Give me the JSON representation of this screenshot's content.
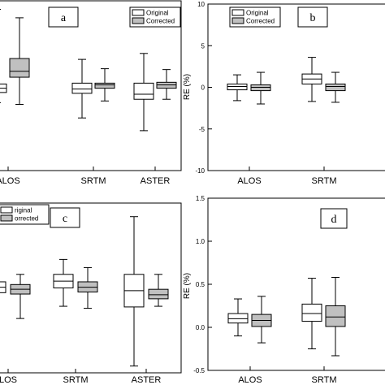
{
  "colors": {
    "original": "#ffffff",
    "corrected": "#c0c0c0",
    "stroke": "#000000"
  },
  "chart_data": [
    {
      "id": "a",
      "type": "box",
      "panel_label": "a",
      "categories": [
        "ALOS",
        "SRTM",
        "ASTER"
      ],
      "category_labels": [
        "ALOS",
        "SRTM",
        "ASTER"
      ],
      "legend": [
        "Original",
        "Corrected"
      ],
      "ylim": [
        -10,
        10
      ],
      "ylabel": "",
      "yticks": [],
      "yticklabels": [],
      "series": [
        {
          "name": "Original",
          "stats": [
            {
              "min": -2,
              "q1": -0.8,
              "median": -0.3,
              "q3": 0.2,
              "max": 9
            },
            {
              "min": -3.8,
              "q1": -0.9,
              "median": -0.4,
              "q3": 0.3,
              "max": 3.1
            },
            {
              "min": -5.3,
              "q1": -1.6,
              "median": -1.0,
              "q3": 0.3,
              "max": 3.8
            }
          ]
        },
        {
          "name": "Corrected",
          "stats": [
            {
              "min": -2.2,
              "q1": 1.0,
              "median": 1.7,
              "q3": 3.2,
              "max": 8
            },
            {
              "min": -1.8,
              "q1": -0.3,
              "median": 0.1,
              "q3": 0.3,
              "max": 2.0
            },
            {
              "min": -1.6,
              "q1": -0.3,
              "median": 0.1,
              "q3": 0.4,
              "max": 1.9
            }
          ]
        }
      ]
    },
    {
      "id": "b",
      "type": "box",
      "panel_label": "b",
      "categories": [
        "ALOS",
        "SRTM"
      ],
      "category_labels": [
        "ALOS",
        "SRTM"
      ],
      "legend": [
        "Original",
        "Corrected"
      ],
      "ylim": [
        -10,
        10
      ],
      "ylabel": "RE (%)",
      "yticks": [
        -10,
        -5,
        0,
        5,
        10
      ],
      "yticklabels": [
        "-10",
        "-5",
        "0",
        "5",
        "10"
      ],
      "series": [
        {
          "name": "Original",
          "stats": [
            {
              "min": -1.6,
              "q1": -0.3,
              "median": 0.1,
              "q3": 0.4,
              "max": 1.5
            },
            {
              "min": -1.7,
              "q1": 0.4,
              "median": 1.0,
              "q3": 1.6,
              "max": 3.6
            }
          ]
        },
        {
          "name": "Corrected",
          "stats": [
            {
              "min": -2.0,
              "q1": -0.4,
              "median": 0.0,
              "q3": 0.3,
              "max": 1.8
            },
            {
              "min": -1.8,
              "q1": -0.4,
              "median": 0.1,
              "q3": 0.4,
              "max": 1.8
            }
          ]
        }
      ]
    },
    {
      "id": "c",
      "type": "box",
      "panel_label": "c",
      "categories": [
        "ALOS",
        "SRTM",
        "ASTER"
      ],
      "category_labels": [
        "LOS",
        "SRTM",
        "ASTER"
      ],
      "legend": [
        "Original",
        "Corrected"
      ],
      "legend_labels": [
        "riginal",
        "orrected"
      ],
      "ylim": [
        -1.0,
        1.5
      ],
      "ylabel": "",
      "yticks": [],
      "yticklabels": [],
      "series": [
        {
          "name": "Original",
          "stats": [
            {
              "min": -0.2,
              "q1": 0.18,
              "median": 0.26,
              "q3": 0.34,
              "max": 0.55
            },
            {
              "min": -0.02,
              "q1": 0.25,
              "median": 0.35,
              "q3": 0.45,
              "max": 0.67
            },
            {
              "min": -0.9,
              "q1": -0.03,
              "median": 0.21,
              "q3": 0.45,
              "max": 1.3
            }
          ]
        },
        {
          "name": "Corrected",
          "stats": [
            {
              "min": -0.2,
              "q1": 0.16,
              "median": 0.23,
              "q3": 0.3,
              "max": 0.45
            },
            {
              "min": -0.05,
              "q1": 0.19,
              "median": 0.26,
              "q3": 0.34,
              "max": 0.55
            },
            {
              "min": -0.02,
              "q1": 0.09,
              "median": 0.15,
              "q3": 0.23,
              "max": 0.45
            }
          ]
        }
      ]
    },
    {
      "id": "d",
      "type": "box",
      "panel_label": "d",
      "categories": [
        "ALOS",
        "SRTM"
      ],
      "category_labels": [
        "ALOS",
        "SRTM"
      ],
      "legend": [],
      "ylim": [
        -0.5,
        1.5
      ],
      "ylabel": "RE (%)",
      "yticks": [
        -0.5,
        0.0,
        0.5,
        1.0,
        1.5
      ],
      "yticklabels": [
        "-0.5",
        "0.0",
        "0.5",
        "1.0",
        "1.5"
      ],
      "series": [
        {
          "name": "Original",
          "stats": [
            {
              "min": -0.1,
              "q1": 0.05,
              "median": 0.1,
              "q3": 0.16,
              "max": 0.33
            },
            {
              "min": -0.25,
              "q1": 0.07,
              "median": 0.16,
              "q3": 0.27,
              "max": 0.57
            }
          ]
        },
        {
          "name": "Corrected",
          "stats": [
            {
              "min": -0.18,
              "q1": 0.01,
              "median": 0.08,
              "q3": 0.15,
              "max": 0.36
            },
            {
              "min": -0.33,
              "q1": 0.01,
              "median": 0.12,
              "q3": 0.25,
              "max": 0.58
            }
          ]
        }
      ]
    }
  ]
}
